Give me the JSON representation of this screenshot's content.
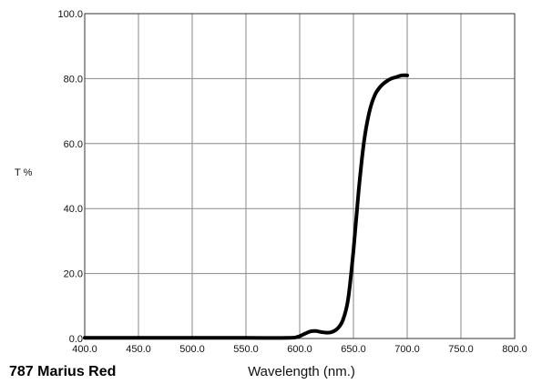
{
  "chart_data": {
    "type": "line",
    "title": "787 Marius Red",
    "xlabel": "Wavelength (nm.)",
    "ylabel": "T %",
    "xlim": [
      400,
      800
    ],
    "ylim": [
      0,
      100
    ],
    "grid": true,
    "x_ticks": [
      400,
      450,
      500,
      550,
      600,
      650,
      700,
      750,
      800
    ],
    "x_tick_labels": [
      "400.0",
      "450.0",
      "500.0",
      "550.0",
      "600.0",
      "650.0",
      "700.0",
      "750.0",
      "800.0"
    ],
    "y_ticks": [
      0,
      20,
      40,
      60,
      80,
      100
    ],
    "y_tick_labels": [
      "0.0",
      "20.0",
      "40.0",
      "60.0",
      "80.0",
      "100.0"
    ],
    "series": [
      {
        "color": "#000000",
        "x": [
          400,
          450,
          500,
          550,
          590,
          598,
          605,
          610,
          615,
          620,
          625,
          630,
          635,
          640,
          645,
          650,
          655,
          660,
          665,
          670,
          675,
          680,
          685,
          690,
          695,
          700
        ],
        "y": [
          0.2,
          0.2,
          0.2,
          0.2,
          0.2,
          0.5,
          1.5,
          2.2,
          2.3,
          2.0,
          1.8,
          2.0,
          3.0,
          5.5,
          12,
          27,
          46,
          61,
          70,
          75,
          77.5,
          79,
          80,
          80.5,
          81,
          81
        ]
      }
    ]
  }
}
